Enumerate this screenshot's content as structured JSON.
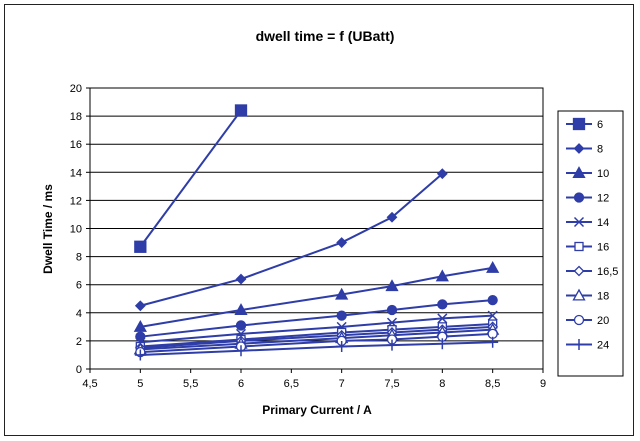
{
  "chart_data": {
    "type": "line",
    "title": "dwell time = f (UBatt)",
    "xlabel": "Primary Current / A",
    "ylabel": "Dwell Time / ms",
    "xlim": [
      4.5,
      9
    ],
    "ylim": [
      0,
      20
    ],
    "x_ticks": [
      "4,5",
      "5",
      "5,5",
      "6",
      "6,5",
      "7",
      "7,5",
      "8",
      "8,5",
      "9"
    ],
    "y_ticks": [
      "0",
      "2",
      "4",
      "6",
      "8",
      "10",
      "12",
      "14",
      "16",
      "18",
      "20"
    ],
    "grid": "horizontal",
    "legend": "right",
    "color": "#2E3DA8",
    "series": [
      {
        "name": "6",
        "marker": "square-filled",
        "x": [
          5,
          6
        ],
        "y": [
          8.7,
          18.4
        ]
      },
      {
        "name": "8",
        "marker": "diamond-filled",
        "x": [
          5,
          6,
          7,
          7.5,
          8
        ],
        "y": [
          4.5,
          6.4,
          9.0,
          10.8,
          13.9
        ]
      },
      {
        "name": "10",
        "marker": "triangle-filled",
        "x": [
          5,
          6,
          7,
          7.5,
          8,
          8.5
        ],
        "y": [
          3.0,
          4.2,
          5.3,
          5.9,
          6.6,
          7.2
        ]
      },
      {
        "name": "12",
        "marker": "circle-filled",
        "x": [
          5,
          6,
          7,
          7.5,
          8,
          8.5
        ],
        "y": [
          2.3,
          3.1,
          3.8,
          4.2,
          4.6,
          4.9
        ]
      },
      {
        "name": "14",
        "marker": "x",
        "x": [
          5,
          6,
          7,
          7.5,
          8,
          8.5
        ],
        "y": [
          1.9,
          2.5,
          3.0,
          3.3,
          3.6,
          3.8
        ]
      },
      {
        "name": "16",
        "marker": "square-open",
        "x": [
          5,
          6,
          7,
          7.5,
          8,
          8.5
        ],
        "y": [
          1.6,
          2.1,
          2.6,
          2.8,
          3.0,
          3.2
        ]
      },
      {
        "name": "16,5",
        "marker": "diamond-open",
        "x": [
          5,
          6,
          7,
          7.5,
          8,
          8.5
        ],
        "y": [
          1.5,
          2.0,
          2.4,
          2.6,
          2.8,
          3.0
        ]
      },
      {
        "name": "18",
        "marker": "triangle-open",
        "x": [
          5,
          6,
          7,
          7.5,
          8,
          8.5
        ],
        "y": [
          1.4,
          1.8,
          2.2,
          2.4,
          2.6,
          2.8
        ]
      },
      {
        "name": "20",
        "marker": "circle-open",
        "x": [
          5,
          6,
          7,
          7.5,
          8,
          8.5
        ],
        "y": [
          1.2,
          1.6,
          2.0,
          2.1,
          2.3,
          2.5
        ]
      },
      {
        "name": "24",
        "marker": "plus",
        "x": [
          5,
          6,
          7,
          7.5,
          8,
          8.5
        ],
        "y": [
          1.0,
          1.3,
          1.6,
          1.7,
          1.8,
          1.9
        ]
      }
    ]
  }
}
